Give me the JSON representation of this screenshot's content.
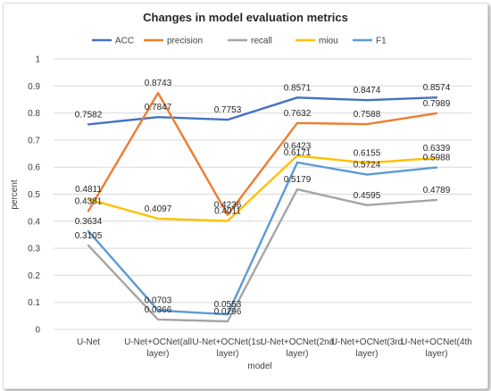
{
  "chart_data": {
    "type": "line",
    "title": "Changes in model evaluation metrics",
    "xlabel": "model",
    "ylabel": "percent",
    "ylim": [
      0,
      1
    ],
    "yticks": [
      "0",
      "0.1",
      "0.2",
      "0.3",
      "0.4",
      "0.5",
      "0.6",
      "0.7",
      "0.8",
      "0.9",
      "1"
    ],
    "grid": true,
    "legend_position": "top",
    "categories": [
      [
        "U-Net"
      ],
      [
        "U-Net+OCNet(all",
        "layer)"
      ],
      [
        "U-Net+OCNet(1st",
        "layer)"
      ],
      [
        "U-Net+OCNet(2nd",
        "layer)"
      ],
      [
        "U-Net+OCNet(3rd",
        "layer)"
      ],
      [
        "U-Net+OCNet(4th",
        "layer)"
      ]
    ],
    "series": [
      {
        "name": "ACC",
        "color": "#4472C4",
        "values": [
          0.7582,
          0.7847,
          0.7753,
          0.8571,
          0.8474,
          0.8574
        ],
        "labels": [
          "0.7582",
          "0.7847",
          "0.7753",
          "0.8571",
          "0.8474",
          "0.8574"
        ]
      },
      {
        "name": "precision",
        "color": "#ED7D31",
        "values": [
          0.4381,
          0.8743,
          0.4236,
          0.7632,
          0.7588,
          0.7989
        ],
        "labels": [
          "0.4381",
          "0.8743",
          "0.4236",
          "0.7632",
          "0.7588",
          "0.7989"
        ]
      },
      {
        "name": "recall",
        "color": "#A5A5A5",
        "values": [
          0.3105,
          0.0366,
          0.0296,
          0.5179,
          0.4595,
          0.4789
        ],
        "labels": [
          "0.3105",
          "0.0366",
          "0.0296",
          "0.5179",
          "0.4595",
          "0.4789"
        ]
      },
      {
        "name": "miou",
        "color": "#FFC000",
        "values": [
          0.4811,
          0.4097,
          0.4011,
          0.6423,
          0.6155,
          0.6339
        ],
        "labels": [
          "0.4811",
          "0.4097",
          "0.4011",
          "0.6423",
          "0.6155",
          "0.6339"
        ]
      },
      {
        "name": "F1",
        "color": "#5B9BD5",
        "values": [
          0.3634,
          0.0703,
          0.0553,
          0.6171,
          0.5724,
          0.5988
        ],
        "labels": [
          "0.3634",
          "0.0703",
          "0.0553",
          "0.6171",
          "0.5724",
          "0.5988"
        ]
      }
    ]
  }
}
